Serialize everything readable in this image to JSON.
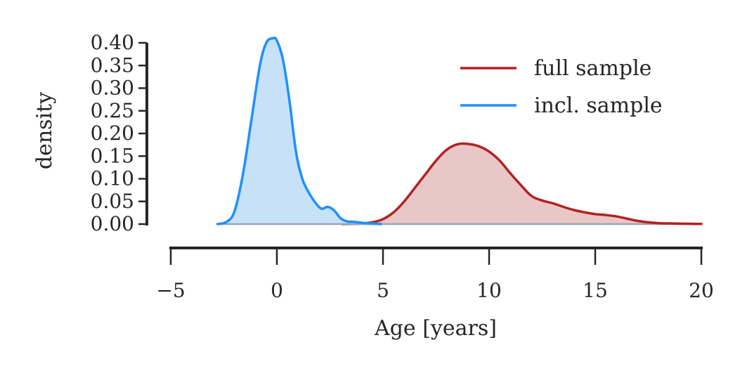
{
  "chart_data": {
    "type": "area",
    "xlabel": "Age [years]",
    "ylabel": "density",
    "xlim": [
      -5,
      20
    ],
    "ylim": [
      0,
      0.4
    ],
    "xticks": [
      -5,
      0,
      5,
      10,
      15,
      20
    ],
    "xtick_labels": [
      "−5",
      "0",
      "5",
      "10",
      "15",
      "20"
    ],
    "yticks": [
      0.0,
      0.05,
      0.1,
      0.15,
      0.2,
      0.25,
      0.3,
      0.35,
      0.4
    ],
    "ytick_labels": [
      "0.00",
      "0.05",
      "0.10",
      "0.15",
      "0.20",
      "0.25",
      "0.30",
      "0.35",
      "0.40"
    ],
    "grid": false,
    "legend_position": "top-right",
    "series": [
      {
        "name": "full sample",
        "color": "#b22222",
        "fill": "#e9c4c4",
        "x": [
          3.1,
          3.5,
          4.0,
          4.5,
          5.0,
          5.5,
          6.0,
          6.5,
          7.0,
          7.5,
          8.0,
          8.5,
          9.0,
          9.5,
          10.0,
          10.5,
          11.0,
          11.5,
          12.0,
          12.5,
          13.0,
          13.5,
          14.0,
          14.5,
          15.0,
          15.5,
          16.0,
          16.5,
          17.0,
          17.5,
          18.0,
          18.5,
          19.0,
          19.5,
          20.0
        ],
        "y": [
          0.0,
          0.0005,
          0.0015,
          0.004,
          0.011,
          0.026,
          0.05,
          0.08,
          0.11,
          0.14,
          0.164,
          0.176,
          0.177,
          0.172,
          0.16,
          0.14,
          0.112,
          0.086,
          0.062,
          0.052,
          0.046,
          0.038,
          0.031,
          0.026,
          0.022,
          0.02,
          0.017,
          0.012,
          0.007,
          0.004,
          0.002,
          0.0015,
          0.001,
          0.0005,
          0.0003
        ]
      },
      {
        "name": "incl. sample",
        "color": "#1e90ff",
        "fill": "#c4dff8",
        "x": [
          -2.8,
          -2.4,
          -2.0,
          -1.6,
          -1.2,
          -0.8,
          -0.5,
          -0.2,
          0.0,
          0.3,
          0.6,
          0.9,
          1.2,
          1.5,
          1.8,
          2.1,
          2.4,
          2.7,
          3.0,
          3.3,
          3.6,
          4.0,
          4.4,
          4.9
        ],
        "y": [
          0.0,
          0.004,
          0.028,
          0.11,
          0.23,
          0.35,
          0.4,
          0.41,
          0.405,
          0.36,
          0.27,
          0.16,
          0.1,
          0.07,
          0.048,
          0.034,
          0.038,
          0.03,
          0.013,
          0.006,
          0.005,
          0.003,
          0.0015,
          0.0
        ]
      }
    ]
  }
}
